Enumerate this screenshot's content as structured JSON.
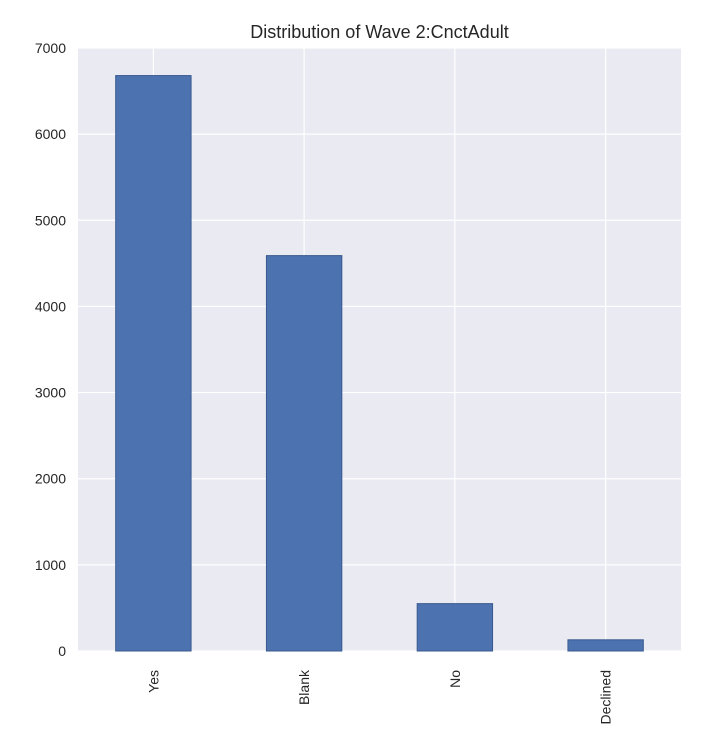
{
  "chart_data": {
    "type": "bar",
    "title": "Distribution of Wave 2:CnctAdult",
    "xlabel": "",
    "ylabel": "",
    "categories": [
      "Yes",
      "Blank",
      "No",
      "Declined"
    ],
    "values": [
      6680,
      4590,
      550,
      130
    ],
    "ylim": [
      0,
      7000
    ],
    "yticks": [
      0,
      1000,
      2000,
      3000,
      4000,
      5000,
      6000,
      7000
    ],
    "ytick_labels": [
      "0",
      "1000",
      "2000",
      "3000",
      "4000",
      "5000",
      "6000",
      "7000"
    ],
    "grid": true,
    "legend": "none",
    "colors": {
      "bar_fill": "#4c72b0",
      "bar_edge": "#3a5a8f",
      "plot_background": "#eaeaf2",
      "grid_line": "#ffffff"
    }
  }
}
